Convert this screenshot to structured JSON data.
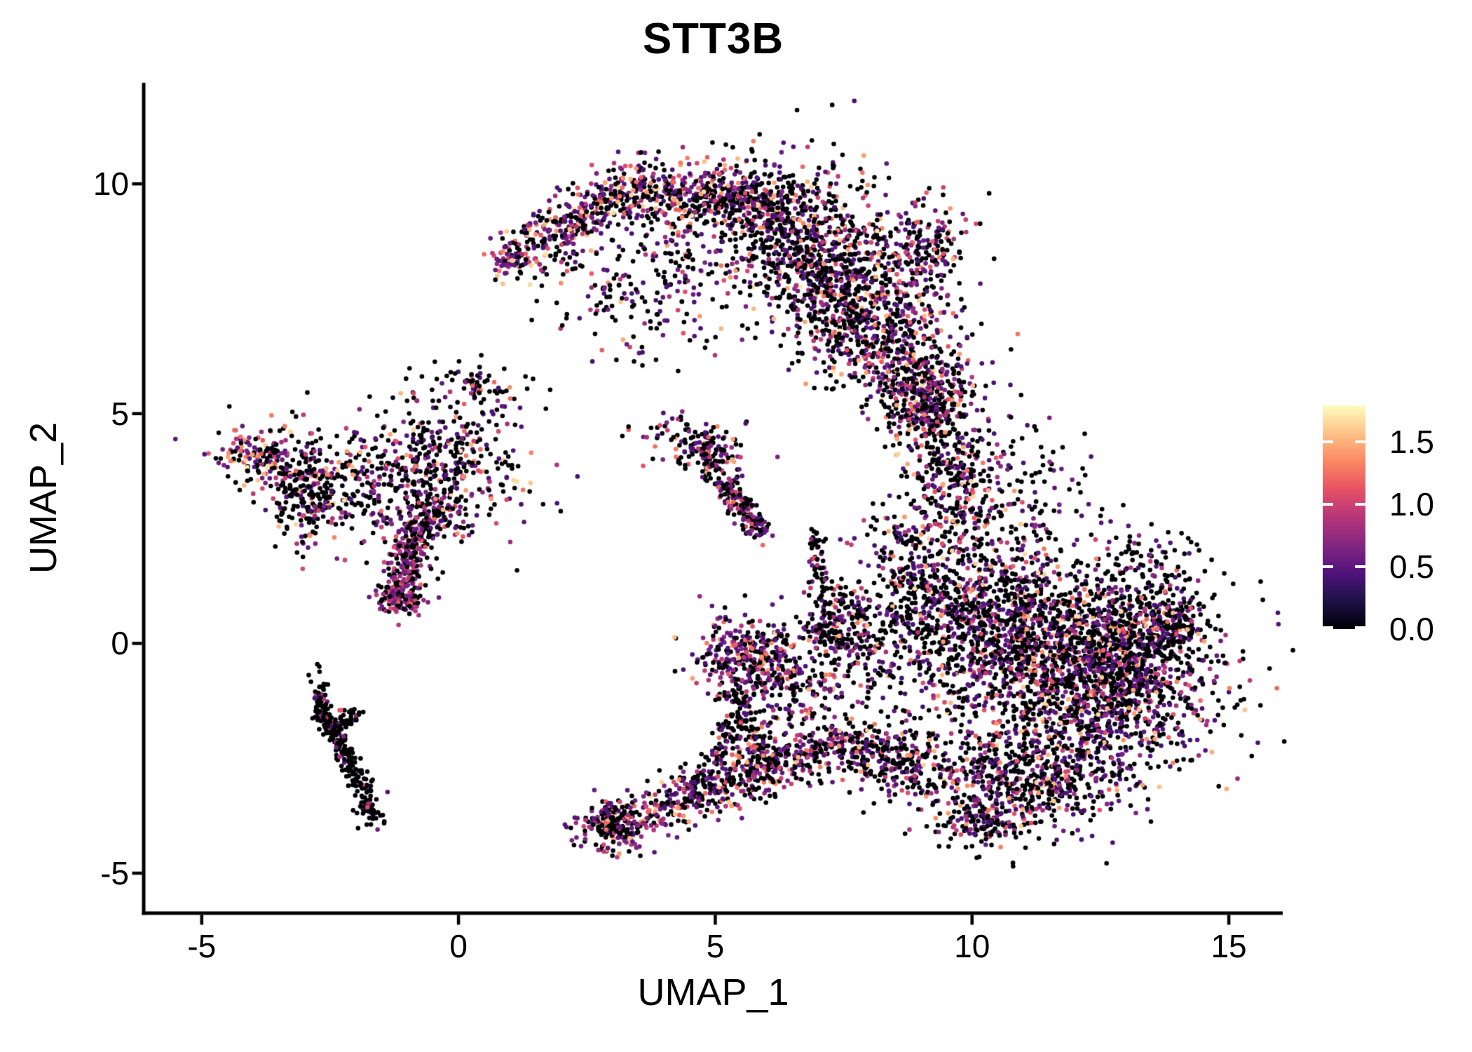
{
  "chart_data": {
    "type": "scatter",
    "title": "STT3B",
    "xlabel": "UMAP_1",
    "ylabel": "UMAP_2",
    "xlim": [
      -6.13,
      16.05
    ],
    "ylim": [
      -5.87,
      12.2
    ],
    "grid": false,
    "background": "#FFFFFF",
    "axis_color": "#000000",
    "x_ticks": [
      {
        "label": "-5",
        "value": -5
      },
      {
        "label": "0",
        "value": 0
      },
      {
        "label": "5",
        "value": 5
      },
      {
        "label": "10",
        "value": 10
      },
      {
        "label": "15",
        "value": 15
      }
    ],
    "y_ticks": [
      {
        "label": "10",
        "value": 10
      },
      {
        "label": "5",
        "value": 5
      },
      {
        "label": "0",
        "value": 0
      },
      {
        "label": "-5",
        "value": -5
      }
    ],
    "legend": {
      "position": "right",
      "max": 1.79,
      "ticks": [
        {
          "label": "1.5",
          "value": 1.5
        },
        {
          "label": "1.0",
          "value": 1.0
        },
        {
          "label": "0.5",
          "value": 0.5
        },
        {
          "label": "0.0",
          "value": 0.0
        }
      ]
    },
    "colormap": {
      "name": "magma",
      "stops": [
        "#000004",
        "#1D1147",
        "#51127C",
        "#822681",
        "#B63679",
        "#E65164",
        "#FB8861",
        "#FEC287",
        "#FCFDBF"
      ]
    },
    "seed": 42,
    "clusters": [
      {
        "name": "crescent-left-band",
        "shape": "strip",
        "x1": 1.25,
        "y1": 8.55,
        "x2": 3.3,
        "y2": 9.9,
        "w": 0.3,
        "n": 300,
        "p_zero": 0.42,
        "v_min": 0.4,
        "v_span": 1.3,
        "v_pow": 2.2
      },
      {
        "name": "crescent-top-band",
        "shape": "strip",
        "x1": 3.3,
        "y1": 9.9,
        "x2": 6.2,
        "y2": 9.55,
        "w": 0.38,
        "n": 520,
        "p_zero": 0.45,
        "v_min": 0.4,
        "v_span": 1.3,
        "v_pow": 2.2
      },
      {
        "name": "crescent-right-limb",
        "shape": "strip",
        "x1": 6.2,
        "y1": 9.5,
        "x2": 8.6,
        "y2": 6.3,
        "w": 0.75,
        "n": 1500,
        "p_zero": 0.5,
        "v_min": 0.38,
        "v_span": 1.35,
        "v_pow": 2.3
      },
      {
        "name": "crescent-right-ear",
        "shape": "gauss",
        "cx": 9.1,
        "cy": 8.6,
        "sx": 0.45,
        "sy": 0.55,
        "n": 180,
        "p_zero": 0.5,
        "v_min": 0.4,
        "v_span": 1.2,
        "v_pow": 2.2
      },
      {
        "name": "crescent-interior-sparse",
        "shape": "gauss",
        "cx": 3.9,
        "cy": 7.9,
        "sx": 1.1,
        "sy": 0.8,
        "n": 260,
        "p_zero": 0.55,
        "v_min": 0.4,
        "v_span": 1.2,
        "v_pow": 2.4
      },
      {
        "name": "crescent-neck",
        "shape": "strip",
        "x1": 8.6,
        "y1": 6.2,
        "x2": 9.3,
        "y2": 4.7,
        "w": 0.35,
        "n": 230,
        "p_zero": 0.5,
        "v_min": 0.4,
        "v_span": 1.25,
        "v_pow": 2.3
      },
      {
        "name": "crescent-left-tip",
        "shape": "gauss",
        "cx": 1.05,
        "cy": 8.35,
        "sx": 0.25,
        "sy": 0.25,
        "n": 70,
        "p_zero": 0.3,
        "v_min": 0.5,
        "v_span": 1.2,
        "v_pow": 1.8
      },
      {
        "name": "neck-arm-gap",
        "shape": "gauss",
        "cx": 9.55,
        "cy": 5.6,
        "sx": 0.35,
        "sy": 0.45,
        "n": 80,
        "p_zero": 0.55,
        "v_min": 0.4,
        "v_span": 1.1,
        "v_pow": 2.3
      },
      {
        "name": "body-upper-arm",
        "shape": "gauss",
        "cx": 9.7,
        "cy": 3.5,
        "sx": 0.55,
        "sy": 0.95,
        "n": 380,
        "p_zero": 0.52,
        "v_min": 0.38,
        "v_span": 1.3,
        "v_pow": 2.3
      },
      {
        "name": "body-arm-cap",
        "shape": "gauss",
        "cx": 8.9,
        "cy": 4.95,
        "sx": 0.3,
        "sy": 0.3,
        "n": 80,
        "p_zero": 0.5,
        "v_min": 0.4,
        "v_span": 1.2,
        "v_pow": 2.2
      },
      {
        "name": "body-arm-right-sparse",
        "shape": "gauss",
        "cx": 11.3,
        "cy": 3.2,
        "sx": 0.7,
        "sy": 0.7,
        "n": 90,
        "p_zero": 0.75,
        "v_min": 0.4,
        "v_span": 1.0,
        "v_pow": 2.4
      },
      {
        "name": "body-core-upper",
        "shape": "gauss",
        "cx": 10.4,
        "cy": 0.6,
        "sx": 1.05,
        "sy": 0.85,
        "n": 900,
        "p_zero": 0.55,
        "v_min": 0.38,
        "v_span": 1.3,
        "v_pow": 2.4
      },
      {
        "name": "body-core-main",
        "shape": "gauss",
        "cx": 11.9,
        "cy": -1.0,
        "sx": 1.35,
        "sy": 1.0,
        "n": 1400,
        "p_zero": 0.56,
        "v_min": 0.38,
        "v_span": 1.3,
        "v_pow": 2.4
      },
      {
        "name": "body-core-right",
        "shape": "gauss",
        "cx": 13.0,
        "cy": -0.1,
        "sx": 0.75,
        "sy": 0.75,
        "n": 550,
        "p_zero": 0.55,
        "v_min": 0.38,
        "v_span": 1.25,
        "v_pow": 2.4
      },
      {
        "name": "body-right-beak",
        "shape": "gauss",
        "cx": 14.0,
        "cy": 0.35,
        "sx": 0.33,
        "sy": 0.3,
        "n": 130,
        "p_zero": 0.55,
        "v_min": 0.38,
        "v_span": 1.2,
        "v_pow": 2.4
      },
      {
        "name": "body-bottom-fringe",
        "shape": "gauss",
        "cx": 10.9,
        "cy": -3.0,
        "sx": 1.15,
        "sy": 0.55,
        "n": 520,
        "p_zero": 0.55,
        "v_min": 0.38,
        "v_span": 1.25,
        "v_pow": 2.4
      },
      {
        "name": "body-bottom-tip",
        "shape": "gauss",
        "cx": 10.2,
        "cy": -3.8,
        "sx": 0.4,
        "sy": 0.3,
        "n": 110,
        "p_zero": 0.6,
        "v_min": 0.38,
        "v_span": 1.1,
        "v_pow": 2.4
      },
      {
        "name": "body-right-top-sparse",
        "shape": "gauss",
        "cx": 13.4,
        "cy": 1.7,
        "sx": 0.6,
        "sy": 0.5,
        "n": 110,
        "p_zero": 0.7,
        "v_min": 0.4,
        "v_span": 1.0,
        "v_pow": 2.5
      },
      {
        "name": "body-left-edge",
        "shape": "gauss",
        "cx": 8.8,
        "cy": 1.3,
        "sx": 0.5,
        "sy": 0.9,
        "n": 260,
        "p_zero": 0.6,
        "v_min": 0.38,
        "v_span": 1.2,
        "v_pow": 2.4
      },
      {
        "name": "body-left-filler",
        "shape": "gauss",
        "cx": 7.9,
        "cy": -0.2,
        "sx": 0.5,
        "sy": 0.8,
        "n": 150,
        "p_zero": 0.6,
        "v_min": 0.4,
        "v_span": 1.2,
        "v_pow": 2.3
      },
      {
        "name": "left-far-blob",
        "shape": "gauss",
        "cx": -3.9,
        "cy": 4.05,
        "sx": 0.38,
        "sy": 0.33,
        "n": 140,
        "p_zero": 0.4,
        "v_min": 0.45,
        "v_span": 1.25,
        "v_pow": 1.9
      },
      {
        "name": "left-dark-blob",
        "shape": "gauss",
        "cx": -2.95,
        "cy": 3.3,
        "sx": 0.42,
        "sy": 0.6,
        "n": 280,
        "p_zero": 0.68,
        "v_min": 0.4,
        "v_span": 1.25,
        "v_pow": 2.0
      },
      {
        "name": "left-bridge",
        "shape": "gauss",
        "cx": -1.8,
        "cy": 3.5,
        "sx": 0.45,
        "sy": 0.55,
        "n": 90,
        "p_zero": 0.6,
        "v_min": 0.4,
        "v_span": 1.2,
        "v_pow": 2.2
      },
      {
        "name": "centerleft-scatter",
        "shape": "gauss",
        "cx": -0.4,
        "cy": 3.9,
        "sx": 0.85,
        "sy": 0.75,
        "n": 450,
        "p_zero": 0.55,
        "v_min": 0.4,
        "v_span": 1.3,
        "v_pow": 2.2
      },
      {
        "name": "centerleft-top-sparse",
        "shape": "gauss",
        "cx": 0.3,
        "cy": 5.6,
        "sx": 0.5,
        "sy": 0.3,
        "n": 60,
        "p_zero": 0.6,
        "v_min": 0.4,
        "v_span": 1.1,
        "v_pow": 2.2
      },
      {
        "name": "centerleft-lower",
        "shape": "gauss",
        "cx": -0.35,
        "cy": 2.7,
        "sx": 0.4,
        "sy": 0.3,
        "n": 90,
        "p_zero": 0.5,
        "v_min": 0.45,
        "v_span": 1.1,
        "v_pow": 2.0
      },
      {
        "name": "centerleft-tail",
        "shape": "strip",
        "x1": -0.7,
        "y1": 2.9,
        "x2": -1.2,
        "y2": 0.85,
        "w": 0.2,
        "n": 280,
        "p_zero": 0.4,
        "v_min": 0.5,
        "v_span": 0.75,
        "v_pow": 1.7
      },
      {
        "name": "centerleft-tail-knot",
        "shape": "gauss",
        "cx": -1.1,
        "cy": 0.92,
        "sx": 0.2,
        "sy": 0.13,
        "n": 80,
        "p_zero": 0.3,
        "v_min": 0.55,
        "v_span": 0.7,
        "v_pow": 1.6
      },
      {
        "name": "v-branch-upper",
        "shape": "gauss",
        "cx": -2.7,
        "cy": -1.1,
        "sx": 0.07,
        "sy": 0.22,
        "n": 35,
        "p_zero": 0.9,
        "v_min": 0.45,
        "v_span": 0.6,
        "v_pow": 2.0
      },
      {
        "name": "v-branch-main1",
        "shape": "strip",
        "x1": -2.75,
        "y1": -1.35,
        "x2": -2.25,
        "y2": -2.3,
        "w": 0.1,
        "n": 95,
        "p_zero": 0.9,
        "v_min": 0.45,
        "v_span": 0.8,
        "v_pow": 2.0
      },
      {
        "name": "v-branch-main2",
        "shape": "strip",
        "x1": -2.25,
        "y1": -2.3,
        "x2": -1.78,
        "y2": -3.3,
        "w": 0.1,
        "n": 95,
        "p_zero": 0.9,
        "v_min": 0.45,
        "v_span": 0.8,
        "v_pow": 2.0
      },
      {
        "name": "v-end-blob",
        "shape": "gauss",
        "cx": -1.72,
        "cy": -3.65,
        "sx": 0.13,
        "sy": 0.18,
        "n": 45,
        "p_zero": 0.85,
        "v_min": 0.45,
        "v_span": 0.8,
        "v_pow": 2.0
      },
      {
        "name": "v-branch-side",
        "shape": "strip",
        "x1": -2.5,
        "y1": -1.9,
        "x2": -2.0,
        "y2": -1.5,
        "w": 0.09,
        "n": 55,
        "p_zero": 0.85,
        "v_min": 0.45,
        "v_span": 0.8,
        "v_pow": 2.0
      },
      {
        "name": "bottom-knot",
        "shape": "gauss",
        "cx": 3.05,
        "cy": -3.95,
        "sx": 0.35,
        "sy": 0.28,
        "n": 240,
        "p_zero": 0.45,
        "v_min": 0.45,
        "v_span": 1.15,
        "v_pow": 2.0
      },
      {
        "name": "bottom-band",
        "shape": "strip",
        "x1": 3.6,
        "y1": -3.75,
        "x2": 7.5,
        "y2": -2.15,
        "w": 0.3,
        "n": 520,
        "p_zero": 0.45,
        "v_min": 0.45,
        "v_span": 1.2,
        "v_pow": 2.1
      },
      {
        "name": "bottom-band-right",
        "shape": "strip",
        "x1": 7.5,
        "y1": -2.15,
        "x2": 9.1,
        "y2": -2.75,
        "w": 0.35,
        "n": 260,
        "p_zero": 0.5,
        "v_min": 0.4,
        "v_span": 1.25,
        "v_pow": 2.2
      },
      {
        "name": "mid-small-cluster",
        "shape": "gauss",
        "cx": 4.85,
        "cy": 4.15,
        "sx": 0.3,
        "sy": 0.25,
        "n": 120,
        "p_zero": 0.5,
        "v_min": 0.4,
        "v_span": 1.2,
        "v_pow": 2.1
      },
      {
        "name": "mid-small-fringe",
        "shape": "gauss",
        "cx": 4.3,
        "cy": 4.5,
        "sx": 0.5,
        "sy": 0.3,
        "n": 50,
        "p_zero": 0.6,
        "v_min": 0.4,
        "v_span": 1.1,
        "v_pow": 2.2
      },
      {
        "name": "mid-streak",
        "shape": "strip",
        "x1": 5.1,
        "y1": 3.6,
        "x2": 5.85,
        "y2": 2.45,
        "w": 0.14,
        "n": 160,
        "p_zero": 0.45,
        "v_min": 0.45,
        "v_span": 0.95,
        "v_pow": 1.9
      },
      {
        "name": "mid-chain",
        "shape": "strip",
        "x1": 6.9,
        "y1": 2.4,
        "x2": 7.15,
        "y2": 1.0,
        "w": 0.12,
        "n": 60,
        "p_zero": 0.75,
        "v_min": 0.4,
        "v_span": 1.0,
        "v_pow": 2.2
      },
      {
        "name": "mid-dark-blob",
        "shape": "gauss",
        "cx": 7.35,
        "cy": 0.4,
        "sx": 0.28,
        "sy": 0.33,
        "n": 130,
        "p_zero": 0.68,
        "v_min": 0.45,
        "v_span": 1.2,
        "v_pow": 2.0
      },
      {
        "name": "mid-dense-blob",
        "shape": "gauss",
        "cx": 5.6,
        "cy": -0.25,
        "sx": 0.5,
        "sy": 0.45,
        "n": 330,
        "p_zero": 0.45,
        "v_min": 0.42,
        "v_span": 1.25,
        "v_pow": 2.1
      },
      {
        "name": "mid-connector",
        "shape": "gauss",
        "cx": 6.6,
        "cy": -1.0,
        "sx": 0.6,
        "sy": 0.6,
        "n": 160,
        "p_zero": 0.55,
        "v_min": 0.4,
        "v_span": 1.2,
        "v_pow": 2.2
      },
      {
        "name": "mid-streak-down",
        "shape": "strip",
        "x1": 5.3,
        "y1": -0.9,
        "x2": 6.1,
        "y2": -2.9,
        "w": 0.18,
        "n": 130,
        "p_zero": 0.6,
        "v_min": 0.4,
        "v_span": 1.1,
        "v_pow": 2.2
      },
      {
        "name": "mid-streak-left",
        "shape": "strip",
        "x1": 4.6,
        "y1": -3.3,
        "x2": 5.4,
        "y2": -1.6,
        "w": 0.15,
        "n": 90,
        "p_zero": 0.65,
        "v_min": 0.4,
        "v_span": 1.0,
        "v_pow": 2.2
      }
    ]
  }
}
